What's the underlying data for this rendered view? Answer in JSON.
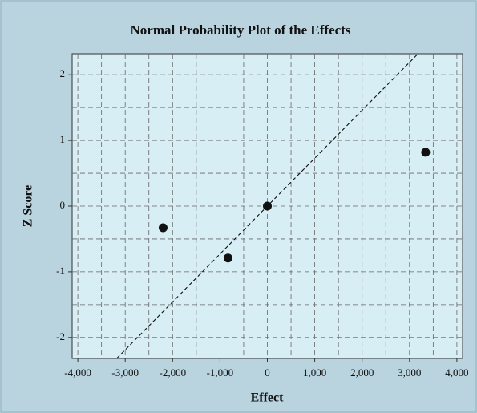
{
  "chart_data": {
    "type": "scatter",
    "title": "Normal Probability Plot of the Effects",
    "x_label": "Effect",
    "y_label": "Z Score",
    "series": [
      {
        "color": "#111111",
        "x": [
          -2200,
          -830,
          0,
          3340
        ],
        "y": [
          -0.33,
          -0.79,
          0,
          0.82
        ]
      }
    ],
    "reference_line": {
      "x": [
        -3180,
        3180
      ],
      "y": [
        -2.32,
        2.32
      ],
      "color": "#111111"
    },
    "xlim": [
      -4120,
      4120
    ],
    "ylim": [
      -2.32,
      2.32
    ],
    "xticks": [
      {
        "value": -4000,
        "label": "-4,000"
      },
      {
        "value": -3000,
        "label": "-3,000"
      },
      {
        "value": -2000,
        "label": "-2,000"
      },
      {
        "value": -1000,
        "label": "-1,000"
      },
      0,
      {
        "value": 1000,
        "label": "1,000"
      },
      {
        "value": 2000,
        "label": "2,000"
      },
      {
        "value": 3000,
        "label": "3,000"
      },
      {
        "value": 4000,
        "label": "4,000"
      }
    ],
    "yticks": [
      -2,
      -1,
      0,
      1,
      2
    ],
    "x_minor_grid": [
      -3500,
      -2500,
      -1500,
      -500,
      500,
      1500,
      2500,
      3500
    ],
    "y_minor_grid": [
      -1.5,
      -0.5,
      0.5,
      1.5
    ],
    "grid": true
  }
}
